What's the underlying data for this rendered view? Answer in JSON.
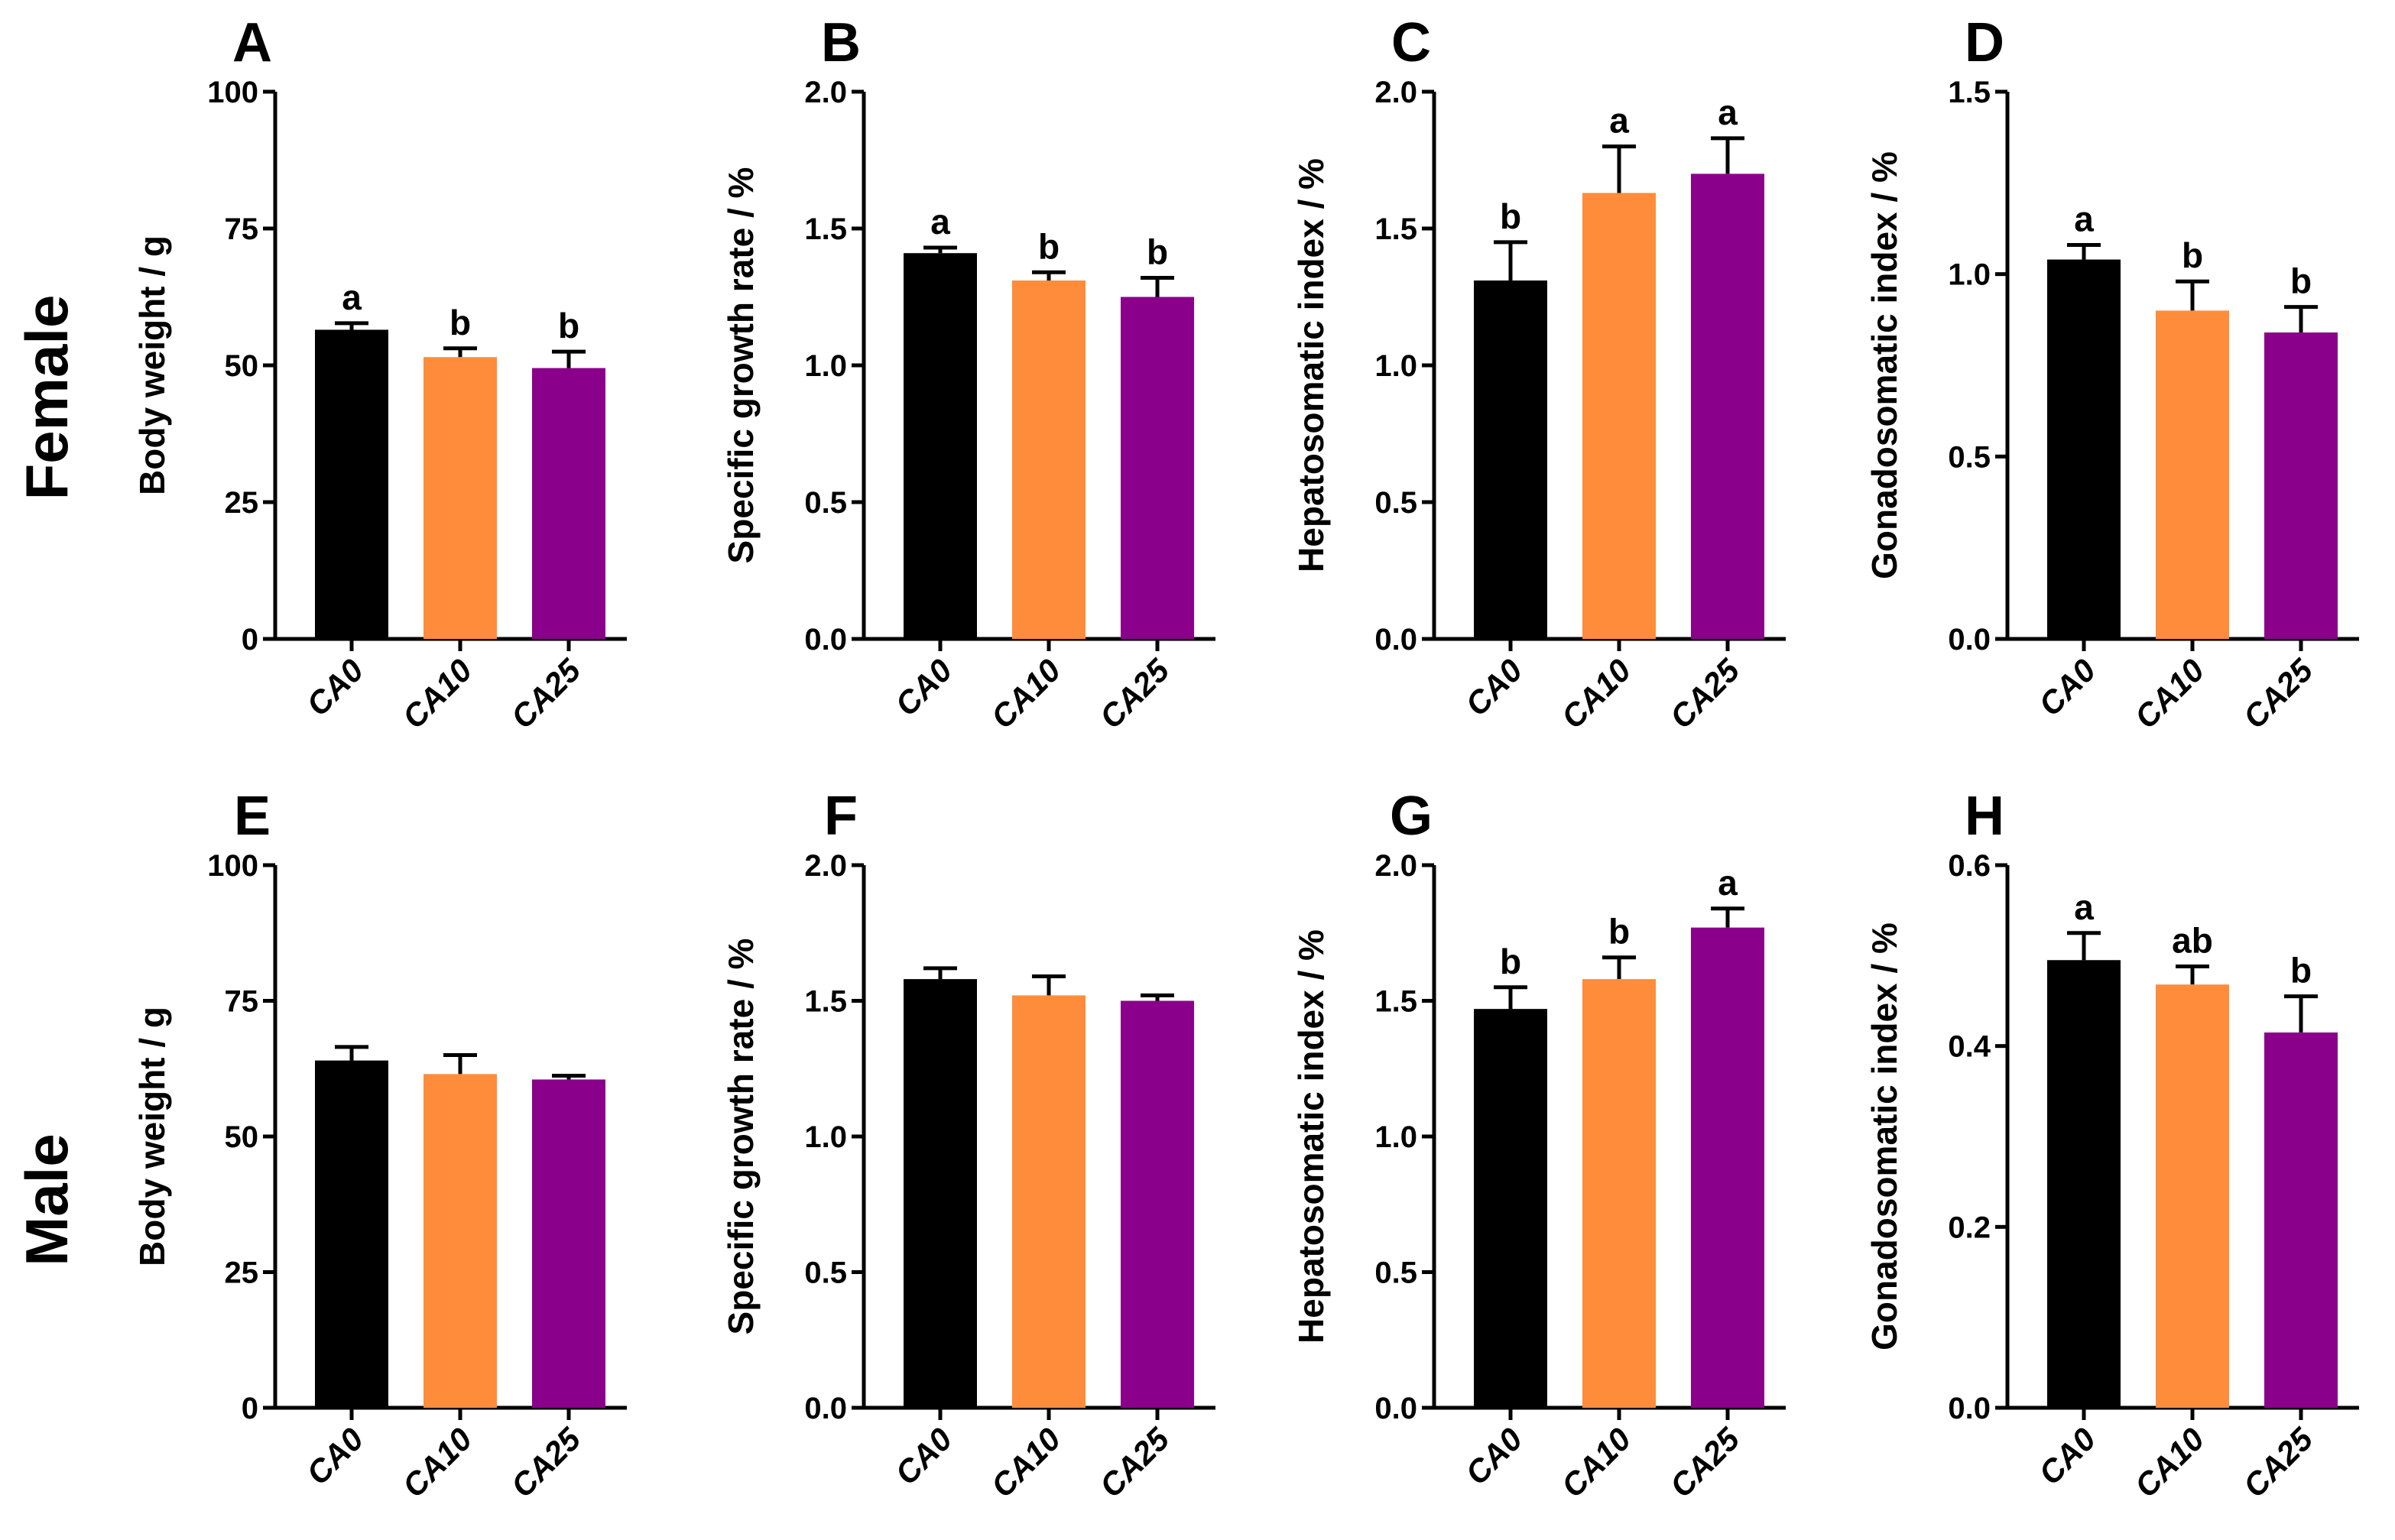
{
  "chart_data": {
    "type": "bar",
    "row_labels": [
      "Female",
      "Male"
    ],
    "categories": [
      "CA0",
      "CA10",
      "CA25"
    ],
    "colors": [
      "#000000",
      "#FF8C3A",
      "#8B008B"
    ],
    "panels": [
      {
        "letter": "A",
        "row": 0,
        "ylabel": "Body weight / g",
        "ylim": [
          0,
          100
        ],
        "ticks": [
          "0",
          "25",
          "50",
          "75",
          "100"
        ],
        "values": [
          56.5,
          51.5,
          49.5
        ],
        "errors": [
          1.2,
          1.6,
          3.0
        ],
        "sig": [
          "a",
          "b",
          "b"
        ]
      },
      {
        "letter": "B",
        "row": 0,
        "ylabel": "Specific growth rate / %",
        "ylim": [
          0,
          2.0
        ],
        "ticks": [
          "0.0",
          "0.5",
          "1.0",
          "1.5",
          "2.0"
        ],
        "values": [
          1.41,
          1.31,
          1.25
        ],
        "errors": [
          0.02,
          0.03,
          0.07
        ],
        "sig": [
          "a",
          "b",
          "b"
        ]
      },
      {
        "letter": "C",
        "row": 0,
        "ylabel": "Hepatosomatic index / %",
        "ylim": [
          0,
          2.0
        ],
        "ticks": [
          "0.0",
          "0.5",
          "1.0",
          "1.5",
          "2.0"
        ],
        "values": [
          1.31,
          1.63,
          1.7
        ],
        "errors": [
          0.14,
          0.17,
          0.13
        ],
        "sig": [
          "b",
          "a",
          "a"
        ]
      },
      {
        "letter": "D",
        "row": 0,
        "ylabel": "Gonadosomatic index / %",
        "ylim": [
          0,
          1.5
        ],
        "ticks": [
          "0.0",
          "0.5",
          "1.0",
          "1.5"
        ],
        "values": [
          1.04,
          0.9,
          0.84
        ],
        "errors": [
          0.04,
          0.08,
          0.07
        ],
        "sig": [
          "a",
          "b",
          "b"
        ]
      },
      {
        "letter": "E",
        "row": 1,
        "ylabel": "Body weight / g",
        "ylim": [
          0,
          100
        ],
        "ticks": [
          "0",
          "25",
          "50",
          "75",
          "100"
        ],
        "values": [
          64.0,
          61.5,
          60.5
        ],
        "errors": [
          2.5,
          3.5,
          0.7
        ],
        "sig": [
          "",
          "",
          ""
        ]
      },
      {
        "letter": "F",
        "row": 1,
        "ylabel": "Specific growth rate / %",
        "ylim": [
          0,
          2.0
        ],
        "ticks": [
          "0.0",
          "0.5",
          "1.0",
          "1.5",
          "2.0"
        ],
        "values": [
          1.58,
          1.52,
          1.5
        ],
        "errors": [
          0.04,
          0.07,
          0.02
        ],
        "sig": [
          "",
          "",
          ""
        ]
      },
      {
        "letter": "G",
        "row": 1,
        "ylabel": "Hepatosomatic index / %",
        "ylim": [
          0,
          2.0
        ],
        "ticks": [
          "0.0",
          "0.5",
          "1.0",
          "1.5",
          "2.0"
        ],
        "values": [
          1.47,
          1.58,
          1.77
        ],
        "errors": [
          0.08,
          0.08,
          0.07
        ],
        "sig": [
          "b",
          "b",
          "a"
        ]
      },
      {
        "letter": "H",
        "row": 1,
        "ylabel": "Gonadosomatic index / %",
        "ylim": [
          0,
          0.6
        ],
        "ticks": [
          "0.0",
          "0.2",
          "0.4",
          "0.6"
        ],
        "values": [
          0.495,
          0.468,
          0.415
        ],
        "errors": [
          0.03,
          0.02,
          0.04
        ],
        "sig": [
          "a",
          "ab",
          "b"
        ]
      }
    ]
  }
}
